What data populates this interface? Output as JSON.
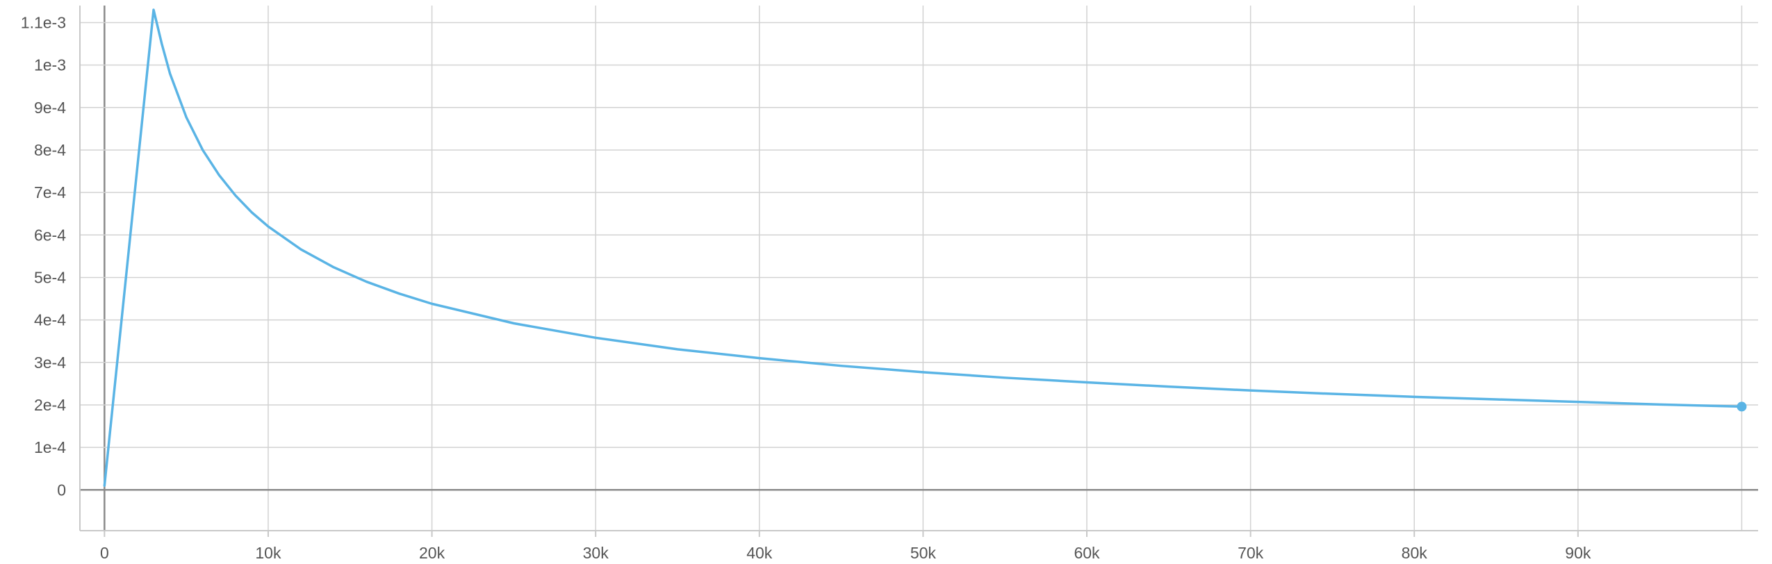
{
  "chart_data": {
    "type": "line",
    "title": "",
    "xlabel": "",
    "ylabel": "",
    "xlim": [
      -1500,
      101000
    ],
    "ylim": [
      -9.6e-05,
      0.00114
    ],
    "x_ticks": [
      {
        "value": 0,
        "label": "0"
      },
      {
        "value": 10000,
        "label": "10k"
      },
      {
        "value": 20000,
        "label": "20k"
      },
      {
        "value": 30000,
        "label": "30k"
      },
      {
        "value": 40000,
        "label": "40k"
      },
      {
        "value": 50000,
        "label": "50k"
      },
      {
        "value": 60000,
        "label": "60k"
      },
      {
        "value": 70000,
        "label": "70k"
      },
      {
        "value": 80000,
        "label": "80k"
      },
      {
        "value": 90000,
        "label": "90k"
      }
    ],
    "y_ticks": [
      {
        "value": 0,
        "label": "0"
      },
      {
        "value": 0.0001,
        "label": "1e-4"
      },
      {
        "value": 0.0002,
        "label": "2e-4"
      },
      {
        "value": 0.0003,
        "label": "3e-4"
      },
      {
        "value": 0.0004,
        "label": "4e-4"
      },
      {
        "value": 0.0005,
        "label": "5e-4"
      },
      {
        "value": 0.0006,
        "label": "6e-4"
      },
      {
        "value": 0.0007,
        "label": "7e-4"
      },
      {
        "value": 0.0008,
        "label": "8e-4"
      },
      {
        "value": 0.0009,
        "label": "9e-4"
      },
      {
        "value": 0.001,
        "label": "1e-3"
      },
      {
        "value": 0.0011,
        "label": "1.1e-3"
      }
    ],
    "grid": true,
    "series": [
      {
        "color": "#5ab4e5",
        "end_marker": true,
        "x": [
          0,
          3000,
          3500,
          4000,
          5000,
          6000,
          7000,
          8000,
          9000,
          10000,
          12000,
          14000,
          16000,
          18000,
          20000,
          25000,
          30000,
          35000,
          40000,
          45000,
          50000,
          55000,
          60000,
          65000,
          70000,
          75000,
          80000,
          85000,
          90000,
          95000,
          100000
        ],
        "y": [
          1e-05,
          0.00113,
          0.00105,
          0.00098,
          0.000877,
          0.0008,
          0.000741,
          0.000693,
          0.000653,
          0.00062,
          0.000566,
          0.000524,
          0.00049,
          0.000462,
          0.000438,
          0.000392,
          0.000358,
          0.000331,
          0.00031,
          0.000292,
          0.000277,
          0.000264,
          0.000253,
          0.000243,
          0.000234,
          0.000226,
          0.000219,
          0.000213,
          0.000207,
          0.000201,
          0.000196
        ]
      }
    ]
  }
}
